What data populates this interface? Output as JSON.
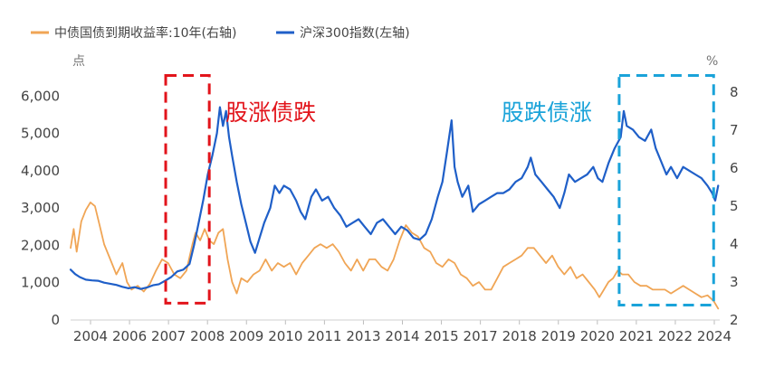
{
  "chart_data": {
    "type": "line",
    "legend": {
      "placement": "top-left"
    },
    "units": {
      "left": "点",
      "right": "%"
    },
    "x_ticks": [
      "2004",
      "2006",
      "2007",
      "2008",
      "2009",
      "2010",
      "2011",
      "2013",
      "2014",
      "2015",
      "2017",
      "2018",
      "2019",
      "2020",
      "2021",
      "2022",
      "2024"
    ],
    "x_range": [
      2002.9,
      2024.2
    ],
    "y_left": {
      "range": [
        0,
        6200
      ],
      "ticks": [
        0,
        1000,
        2000,
        3000,
        4000,
        5000,
        6000
      ],
      "tick_labels": [
        "0",
        "1,000",
        "2,000",
        "3,000",
        "4,000",
        "5,000",
        "6,000"
      ]
    },
    "y_right": {
      "range": [
        2,
        8.1
      ],
      "ticks": [
        2,
        3,
        4,
        5,
        6,
        7,
        8
      ],
      "tick_labels": [
        "2",
        "3",
        "4",
        "5",
        "6",
        "7",
        "8"
      ]
    },
    "series": [
      {
        "name": "中债国债到期收益率:10年(右轴)",
        "axis": "right",
        "color": "#f0a555",
        "points": [
          [
            2002.9,
            3.9
          ],
          [
            2003.0,
            4.4
          ],
          [
            2003.1,
            3.8
          ],
          [
            2003.25,
            4.6
          ],
          [
            2003.4,
            4.9
          ],
          [
            2003.55,
            5.1
          ],
          [
            2003.7,
            5.0
          ],
          [
            2003.85,
            4.5
          ],
          [
            2004.0,
            4.0
          ],
          [
            2004.2,
            3.6
          ],
          [
            2004.4,
            3.2
          ],
          [
            2004.6,
            3.5
          ],
          [
            2004.75,
            3.0
          ],
          [
            2004.9,
            2.8
          ],
          [
            2005.1,
            2.9
          ],
          [
            2005.3,
            2.75
          ],
          [
            2005.5,
            2.95
          ],
          [
            2005.7,
            3.3
          ],
          [
            2005.9,
            3.6
          ],
          [
            2006.1,
            3.5
          ],
          [
            2006.3,
            3.2
          ],
          [
            2006.5,
            3.1
          ],
          [
            2006.7,
            3.3
          ],
          [
            2006.9,
            4.0
          ],
          [
            2007.0,
            4.3
          ],
          [
            2007.15,
            4.1
          ],
          [
            2007.3,
            4.4
          ],
          [
            2007.45,
            4.1
          ],
          [
            2007.6,
            4.0
          ],
          [
            2007.75,
            4.3
          ],
          [
            2007.9,
            4.4
          ],
          [
            2008.05,
            3.6
          ],
          [
            2008.2,
            3.0
          ],
          [
            2008.35,
            2.7
          ],
          [
            2008.5,
            3.1
          ],
          [
            2008.7,
            3.0
          ],
          [
            2008.9,
            3.2
          ],
          [
            2009.1,
            3.3
          ],
          [
            2009.3,
            3.6
          ],
          [
            2009.5,
            3.3
          ],
          [
            2009.7,
            3.5
          ],
          [
            2009.9,
            3.4
          ],
          [
            2010.1,
            3.5
          ],
          [
            2010.3,
            3.2
          ],
          [
            2010.5,
            3.5
          ],
          [
            2010.7,
            3.7
          ],
          [
            2010.9,
            3.9
          ],
          [
            2011.1,
            4.0
          ],
          [
            2011.3,
            3.9
          ],
          [
            2011.5,
            4.0
          ],
          [
            2011.7,
            3.8
          ],
          [
            2011.9,
            3.5
          ],
          [
            2012.1,
            3.3
          ],
          [
            2012.3,
            3.6
          ],
          [
            2012.5,
            3.3
          ],
          [
            2012.7,
            3.6
          ],
          [
            2012.9,
            3.6
          ],
          [
            2013.1,
            3.4
          ],
          [
            2013.3,
            3.3
          ],
          [
            2013.5,
            3.6
          ],
          [
            2013.7,
            4.1
          ],
          [
            2013.9,
            4.5
          ],
          [
            2014.1,
            4.3
          ],
          [
            2014.3,
            4.2
          ],
          [
            2014.5,
            3.9
          ],
          [
            2014.7,
            3.8
          ],
          [
            2014.9,
            3.5
          ],
          [
            2015.1,
            3.4
          ],
          [
            2015.3,
            3.6
          ],
          [
            2015.5,
            3.5
          ],
          [
            2015.7,
            3.2
          ],
          [
            2015.9,
            3.1
          ],
          [
            2016.1,
            2.9
          ],
          [
            2016.3,
            3.0
          ],
          [
            2016.5,
            2.8
          ],
          [
            2016.7,
            2.8
          ],
          [
            2016.9,
            3.1
          ],
          [
            2017.1,
            3.4
          ],
          [
            2017.3,
            3.5
          ],
          [
            2017.5,
            3.6
          ],
          [
            2017.7,
            3.7
          ],
          [
            2017.9,
            3.9
          ],
          [
            2018.1,
            3.9
          ],
          [
            2018.3,
            3.7
          ],
          [
            2018.5,
            3.5
          ],
          [
            2018.7,
            3.7
          ],
          [
            2018.9,
            3.4
          ],
          [
            2019.1,
            3.2
          ],
          [
            2019.3,
            3.4
          ],
          [
            2019.5,
            3.1
          ],
          [
            2019.7,
            3.2
          ],
          [
            2019.9,
            3.0
          ],
          [
            2020.1,
            2.8
          ],
          [
            2020.25,
            2.6
          ],
          [
            2020.4,
            2.8
          ],
          [
            2020.55,
            3.0
          ],
          [
            2020.7,
            3.1
          ],
          [
            2020.85,
            3.3
          ],
          [
            2021.0,
            3.2
          ],
          [
            2021.2,
            3.2
          ],
          [
            2021.4,
            3.0
          ],
          [
            2021.6,
            2.9
          ],
          [
            2021.8,
            2.9
          ],
          [
            2022.0,
            2.8
          ],
          [
            2022.2,
            2.8
          ],
          [
            2022.4,
            2.8
          ],
          [
            2022.6,
            2.7
          ],
          [
            2022.8,
            2.8
          ],
          [
            2023.0,
            2.9
          ],
          [
            2023.2,
            2.8
          ],
          [
            2023.4,
            2.7
          ],
          [
            2023.6,
            2.6
          ],
          [
            2023.8,
            2.65
          ],
          [
            2024.0,
            2.5
          ],
          [
            2024.15,
            2.3
          ]
        ]
      },
      {
        "name": "沪深300指数(左轴)",
        "axis": "left",
        "color": "#1f5fc8",
        "points": [
          [
            2002.9,
            1350
          ],
          [
            2003.05,
            1230
          ],
          [
            2003.2,
            1150
          ],
          [
            2003.4,
            1080
          ],
          [
            2003.6,
            1060
          ],
          [
            2003.8,
            1050
          ],
          [
            2004.0,
            1000
          ],
          [
            2004.2,
            970
          ],
          [
            2004.4,
            940
          ],
          [
            2004.6,
            890
          ],
          [
            2004.8,
            850
          ],
          [
            2005.0,
            880
          ],
          [
            2005.2,
            830
          ],
          [
            2005.4,
            870
          ],
          [
            2005.6,
            930
          ],
          [
            2005.8,
            960
          ],
          [
            2006.0,
            1050
          ],
          [
            2006.2,
            1150
          ],
          [
            2006.4,
            1300
          ],
          [
            2006.6,
            1350
          ],
          [
            2006.8,
            1500
          ],
          [
            2006.95,
            2000
          ],
          [
            2007.1,
            2600
          ],
          [
            2007.25,
            3200
          ],
          [
            2007.4,
            3900
          ],
          [
            2007.55,
            4400
          ],
          [
            2007.7,
            5000
          ],
          [
            2007.8,
            5700
          ],
          [
            2007.9,
            5200
          ],
          [
            2008.0,
            5600
          ],
          [
            2008.1,
            4900
          ],
          [
            2008.2,
            4400
          ],
          [
            2008.35,
            3700
          ],
          [
            2008.5,
            3100
          ],
          [
            2008.65,
            2600
          ],
          [
            2008.8,
            2100
          ],
          [
            2008.95,
            1800
          ],
          [
            2009.1,
            2200
          ],
          [
            2009.25,
            2600
          ],
          [
            2009.45,
            3000
          ],
          [
            2009.6,
            3600
          ],
          [
            2009.75,
            3400
          ],
          [
            2009.9,
            3600
          ],
          [
            2010.1,
            3500
          ],
          [
            2010.3,
            3200
          ],
          [
            2010.45,
            2900
          ],
          [
            2010.6,
            2700
          ],
          [
            2010.8,
            3300
          ],
          [
            2010.95,
            3500
          ],
          [
            2011.15,
            3200
          ],
          [
            2011.35,
            3300
          ],
          [
            2011.55,
            3000
          ],
          [
            2011.75,
            2800
          ],
          [
            2011.95,
            2500
          ],
          [
            2012.15,
            2600
          ],
          [
            2012.35,
            2700
          ],
          [
            2012.55,
            2500
          ],
          [
            2012.75,
            2300
          ],
          [
            2012.95,
            2600
          ],
          [
            2013.15,
            2700
          ],
          [
            2013.35,
            2500
          ],
          [
            2013.55,
            2300
          ],
          [
            2013.75,
            2500
          ],
          [
            2013.95,
            2400
          ],
          [
            2014.15,
            2200
          ],
          [
            2014.35,
            2150
          ],
          [
            2014.55,
            2300
          ],
          [
            2014.75,
            2700
          ],
          [
            2014.95,
            3300
          ],
          [
            2015.1,
            3700
          ],
          [
            2015.25,
            4500
          ],
          [
            2015.4,
            5350
          ],
          [
            2015.5,
            4100
          ],
          [
            2015.6,
            3700
          ],
          [
            2015.75,
            3300
          ],
          [
            2015.95,
            3600
          ],
          [
            2016.1,
            2900
          ],
          [
            2016.3,
            3100
          ],
          [
            2016.5,
            3200
          ],
          [
            2016.7,
            3300
          ],
          [
            2016.9,
            3400
          ],
          [
            2017.1,
            3400
          ],
          [
            2017.3,
            3500
          ],
          [
            2017.5,
            3700
          ],
          [
            2017.7,
            3800
          ],
          [
            2017.9,
            4100
          ],
          [
            2018.0,
            4350
          ],
          [
            2018.15,
            3900
          ],
          [
            2018.35,
            3700
          ],
          [
            2018.55,
            3500
          ],
          [
            2018.75,
            3300
          ],
          [
            2018.95,
            3000
          ],
          [
            2019.1,
            3400
          ],
          [
            2019.25,
            3900
          ],
          [
            2019.45,
            3700
          ],
          [
            2019.65,
            3800
          ],
          [
            2019.85,
            3900
          ],
          [
            2020.05,
            4100
          ],
          [
            2020.2,
            3800
          ],
          [
            2020.35,
            3700
          ],
          [
            2020.55,
            4200
          ],
          [
            2020.75,
            4600
          ],
          [
            2020.95,
            4900
          ],
          [
            2021.05,
            5600
          ],
          [
            2021.15,
            5200
          ],
          [
            2021.35,
            5100
          ],
          [
            2021.55,
            4900
          ],
          [
            2021.75,
            4800
          ],
          [
            2021.95,
            5100
          ],
          [
            2022.1,
            4600
          ],
          [
            2022.25,
            4300
          ],
          [
            2022.45,
            3900
          ],
          [
            2022.6,
            4100
          ],
          [
            2022.8,
            3800
          ],
          [
            2023.0,
            4100
          ],
          [
            2023.2,
            4000
          ],
          [
            2023.4,
            3900
          ],
          [
            2023.6,
            3800
          ],
          [
            2023.8,
            3600
          ],
          [
            2023.95,
            3400
          ],
          [
            2024.05,
            3200
          ],
          [
            2024.15,
            3600
          ]
        ]
      }
    ],
    "annotations": [
      {
        "text": "股涨债跌",
        "color": "#e2141b",
        "box_x": [
          2006.02,
          2007.45
        ],
        "box_y_left": [
          450,
          6550
        ]
      },
      {
        "text": "股跌债涨",
        "color": "#1aa3d9",
        "box_x": [
          2020.9,
          2024.0
        ],
        "box_y_left": [
          400,
          6550
        ]
      }
    ]
  }
}
